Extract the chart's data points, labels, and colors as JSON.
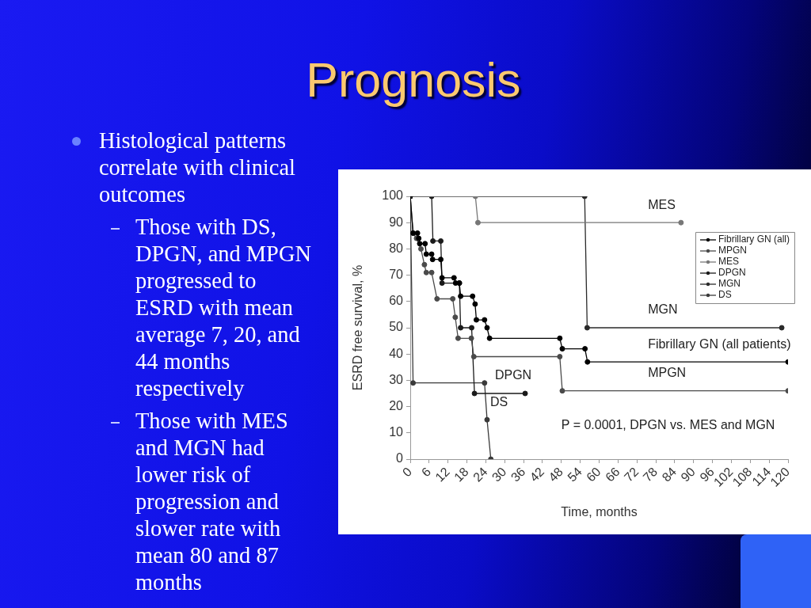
{
  "chart_data": {
    "type": "line",
    "title": "Prognosis",
    "subtitle": "Histological patterns correlate with clinical outcomes",
    "xlabel": "Time, months",
    "ylabel": "ESRD free survival, %",
    "xlim": [
      0,
      120
    ],
    "xticks": [
      0,
      6,
      12,
      18,
      24,
      30,
      36,
      42,
      48,
      54,
      60,
      66,
      72,
      78,
      84,
      90,
      96,
      102,
      108,
      114,
      120
    ],
    "ylim": [
      0,
      100
    ],
    "yticks": [
      0,
      10,
      20,
      30,
      40,
      50,
      60,
      70,
      80,
      90,
      100
    ],
    "grid": false,
    "legend": "top right",
    "marker": "circle",
    "line_style": "solid",
    "series": [
      {
        "name": "Fibrillary GN (all)",
        "color": "#000000",
        "x": [
          0,
          0.9,
          2.3,
          2.7,
          3,
          4.7,
          5.1,
          6.8,
          7.1,
          9.7,
          10.1,
          13.9,
          14.4,
          15.6,
          16,
          19.8,
          20.6,
          21,
          23.6,
          24.4,
          25.2,
          47.5,
          48.3,
          55.5,
          56.3,
          120
        ],
        "values": [
          100,
          86,
          86,
          84,
          82,
          82,
          78,
          78,
          76,
          76,
          69,
          69,
          67,
          67,
          62,
          62,
          59,
          53,
          53,
          50,
          46,
          46,
          42,
          42,
          37,
          37
        ]
      },
      {
        "name": "MPGN",
        "color": "#4a4a4a",
        "x": [
          0,
          0.9,
          2,
          3.4,
          4.5,
          5.1,
          6.8,
          8.5,
          13.5,
          14.3,
          15.2,
          19.4,
          20.2,
          47.5,
          48.3,
          120
        ],
        "values": [
          100,
          86,
          84,
          80,
          74,
          71,
          71,
          61,
          61,
          54,
          46,
          46,
          39,
          39,
          26,
          26
        ]
      },
      {
        "name": "MES",
        "color": "#777777",
        "x": [
          0,
          20.7,
          21.5,
          86
        ],
        "values": [
          100,
          100,
          90,
          90
        ]
      },
      {
        "name": "DPGN",
        "color": "#1a1a1a",
        "x": [
          0,
          6.8,
          7.2,
          9.7,
          10.1,
          15.6,
          16,
          19.5,
          20.4,
          36.5
        ],
        "values": [
          100,
          100,
          83,
          83,
          67,
          67,
          50,
          50,
          25,
          25
        ]
      },
      {
        "name": "MGN",
        "color": "#2a2a2a",
        "x": [
          0,
          55.4,
          56.2,
          118
        ],
        "values": [
          100,
          100,
          50,
          50
        ]
      },
      {
        "name": "DS",
        "color": "#3a3a3a",
        "x": [
          0,
          0.9,
          23.6,
          24.4,
          25.6
        ],
        "values": [
          100,
          29,
          29,
          15,
          0
        ]
      }
    ],
    "annotations": [
      "Those with DS, DPGN, and MPGN progressed to ESRD with mean average 7, 20, and 44 months respectively",
      "Those with MES and MGN had lower risk of progression and slower rate with mean 80 and 87 months",
      "P = 0.0001, DPGN vs. MES and MGN",
      {
        "text": "MES",
        "x": 74.5,
        "y": 90
      },
      {
        "text": "MGN",
        "x": 74.5,
        "y": 50
      },
      {
        "text": "Fibrillary GN (all patients)",
        "x": 74.5,
        "y": 37
      },
      {
        "text": "MPGN",
        "x": 74.5,
        "y": 26
      },
      {
        "text": "DPGN",
        "x": 25.9,
        "y": 25
      },
      {
        "text": "DS",
        "x": 24.4,
        "y": 15
      }
    ]
  }
}
